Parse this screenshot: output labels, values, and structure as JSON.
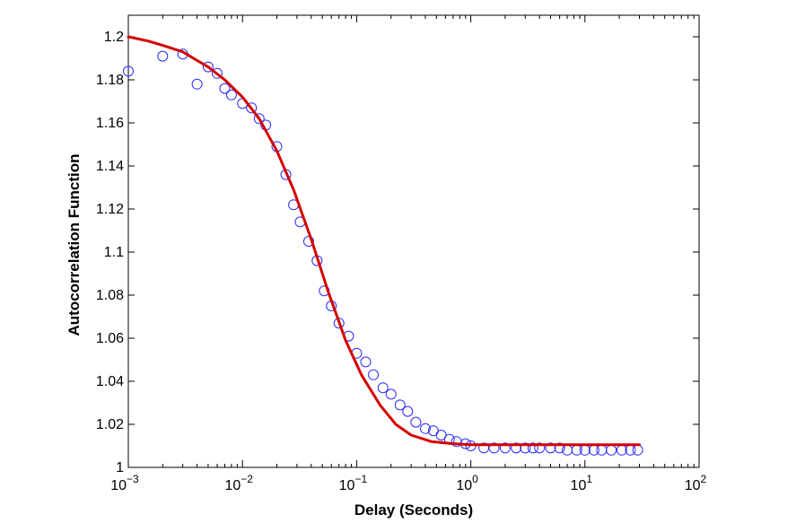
{
  "chart_data": {
    "type": "scatter",
    "xlabel": "Delay (Seconds)",
    "ylabel": "Autocorrelation Function",
    "xscale": "log",
    "xlim": [
      0.001,
      100
    ],
    "ylim": [
      1.0,
      1.21
    ],
    "grid": false,
    "legend": "none",
    "x_ticks": [
      {
        "value": 0.001,
        "base": "10",
        "exp": "−3"
      },
      {
        "value": 0.01,
        "base": "10",
        "exp": "−2"
      },
      {
        "value": 0.1,
        "base": "10",
        "exp": "−1"
      },
      {
        "value": 1,
        "base": "10",
        "exp": "0"
      },
      {
        "value": 10,
        "base": "10",
        "exp": "1"
      },
      {
        "value": 100,
        "base": "10",
        "exp": "2"
      }
    ],
    "y_ticks": [
      {
        "value": 1.0,
        "label": "1"
      },
      {
        "value": 1.02,
        "label": "1.02"
      },
      {
        "value": 1.04,
        "label": "1.04"
      },
      {
        "value": 1.06,
        "label": "1.06"
      },
      {
        "value": 1.08,
        "label": "1.08"
      },
      {
        "value": 1.1,
        "label": "1.1"
      },
      {
        "value": 1.12,
        "label": "1.12"
      },
      {
        "value": 1.14,
        "label": "1.14"
      },
      {
        "value": 1.16,
        "label": "1.16"
      },
      {
        "value": 1.18,
        "label": "1.18"
      },
      {
        "value": 1.2,
        "label": "1.2"
      }
    ],
    "series": [
      {
        "marker": "circle",
        "color": "#2b2bff",
        "points": [
          [
            0.001,
            1.184
          ],
          [
            0.002,
            1.191
          ],
          [
            0.003,
            1.192
          ],
          [
            0.004,
            1.178
          ],
          [
            0.005,
            1.186
          ],
          [
            0.006,
            1.183
          ],
          [
            0.007,
            1.176
          ],
          [
            0.008,
            1.173
          ],
          [
            0.01,
            1.169
          ],
          [
            0.012,
            1.167
          ],
          [
            0.014,
            1.162
          ],
          [
            0.016,
            1.159
          ],
          [
            0.02,
            1.149
          ],
          [
            0.024,
            1.136
          ],
          [
            0.028,
            1.122
          ],
          [
            0.032,
            1.114
          ],
          [
            0.038,
            1.105
          ],
          [
            0.045,
            1.096
          ],
          [
            0.052,
            1.082
          ],
          [
            0.06,
            1.075
          ],
          [
            0.07,
            1.067
          ],
          [
            0.085,
            1.061
          ],
          [
            0.1,
            1.053
          ],
          [
            0.12,
            1.049
          ],
          [
            0.14,
            1.043
          ],
          [
            0.17,
            1.037
          ],
          [
            0.2,
            1.034
          ],
          [
            0.24,
            1.029
          ],
          [
            0.28,
            1.026
          ],
          [
            0.33,
            1.021
          ],
          [
            0.4,
            1.018
          ],
          [
            0.47,
            1.017
          ],
          [
            0.55,
            1.015
          ],
          [
            0.65,
            1.013
          ],
          [
            0.75,
            1.012
          ],
          [
            0.9,
            1.011
          ],
          [
            1.0,
            1.01
          ],
          [
            1.3,
            1.009
          ],
          [
            1.6,
            1.009
          ],
          [
            2.0,
            1.009
          ],
          [
            2.5,
            1.009
          ],
          [
            3.0,
            1.009
          ],
          [
            3.5,
            1.009
          ],
          [
            4.0,
            1.009
          ],
          [
            5.0,
            1.009
          ],
          [
            6.0,
            1.009
          ],
          [
            7.0,
            1.008
          ],
          [
            8.5,
            1.008
          ],
          [
            10.0,
            1.008
          ],
          [
            12.0,
            1.008
          ],
          [
            14.0,
            1.008
          ],
          [
            17.0,
            1.008
          ],
          [
            21.0,
            1.008
          ],
          [
            25.0,
            1.008
          ],
          [
            29.0,
            1.008
          ]
        ]
      },
      {
        "marker": "line",
        "color": "#d40000",
        "points": [
          [
            0.001,
            1.2
          ],
          [
            0.0015,
            1.198
          ],
          [
            0.002,
            1.196
          ],
          [
            0.003,
            1.193
          ],
          [
            0.004,
            1.189
          ],
          [
            0.005,
            1.186
          ],
          [
            0.007,
            1.18
          ],
          [
            0.01,
            1.172
          ],
          [
            0.014,
            1.162
          ],
          [
            0.02,
            1.147
          ],
          [
            0.028,
            1.129
          ],
          [
            0.04,
            1.106
          ],
          [
            0.056,
            1.082
          ],
          [
            0.08,
            1.059
          ],
          [
            0.11,
            1.043
          ],
          [
            0.16,
            1.029
          ],
          [
            0.22,
            1.02
          ],
          [
            0.3,
            1.015
          ],
          [
            0.45,
            1.012
          ],
          [
            0.7,
            1.011
          ],
          [
            1.0,
            1.0105
          ],
          [
            2.0,
            1.0105
          ],
          [
            5.0,
            1.0105
          ],
          [
            10.0,
            1.0105
          ],
          [
            30.0,
            1.0105
          ]
        ]
      }
    ]
  }
}
